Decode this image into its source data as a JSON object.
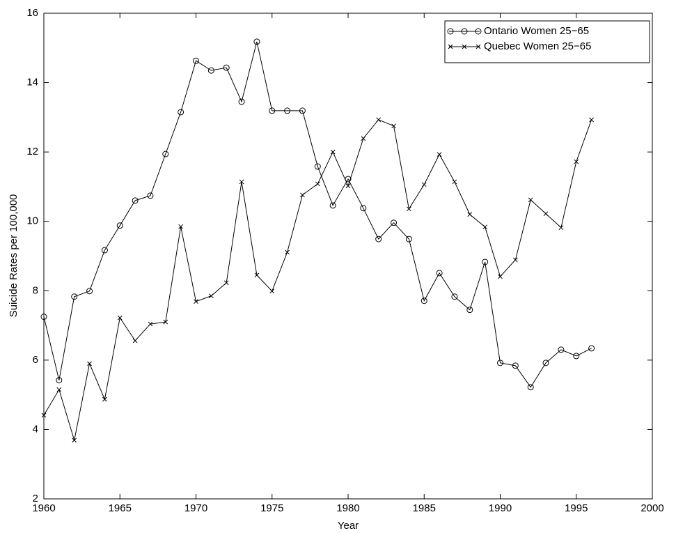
{
  "chart_data": {
    "type": "line",
    "xlabel": "Year",
    "ylabel": "Suicide Rates per 100,000",
    "x": [
      1960,
      1961,
      1962,
      1963,
      1964,
      1965,
      1966,
      1967,
      1968,
      1969,
      1970,
      1971,
      1972,
      1973,
      1974,
      1975,
      1976,
      1977,
      1978,
      1979,
      1980,
      1981,
      1982,
      1983,
      1984,
      1985,
      1986,
      1987,
      1988,
      1989,
      1990,
      1991,
      1992,
      1993,
      1994,
      1995,
      1996
    ],
    "series": [
      {
        "name": "Ontario Women 25−65",
        "color": "#000000",
        "marker": "o",
        "values": [
          7.25,
          5.42,
          7.83,
          7.99,
          9.17,
          9.88,
          10.6,
          10.74,
          11.94,
          13.15,
          14.63,
          14.35,
          14.43,
          13.45,
          15.18,
          13.19,
          13.19,
          13.19,
          11.58,
          10.46,
          11.22,
          10.38,
          9.49,
          9.96,
          9.49,
          7.71,
          8.51,
          7.83,
          7.45,
          8.83,
          5.92,
          5.84,
          5.22,
          5.92,
          6.3,
          6.12,
          6.34
        ]
      },
      {
        "name": "Quebec Women 25−65",
        "color": "#000000",
        "marker": "x",
        "values": [
          4.41,
          5.15,
          3.69,
          5.9,
          4.87,
          7.22,
          6.56,
          7.04,
          7.1,
          9.85,
          7.69,
          7.85,
          8.23,
          11.14,
          8.45,
          7.99,
          9.11,
          10.76,
          11.08,
          12.0,
          11.02,
          12.39,
          12.93,
          12.75,
          10.36,
          11.06,
          11.93,
          11.14,
          10.2,
          9.84,
          8.41,
          8.89,
          10.62,
          10.22,
          9.82,
          11.72,
          12.93
        ]
      }
    ],
    "xlim": [
      1960,
      2000
    ],
    "xticks": [
      1960,
      1965,
      1970,
      1975,
      1980,
      1985,
      1990,
      1995,
      2000
    ],
    "ylim": [
      2,
      16
    ],
    "yticks": [
      2,
      4,
      6,
      8,
      10,
      12,
      14,
      16
    ],
    "grid": false,
    "legend": "upper right"
  }
}
